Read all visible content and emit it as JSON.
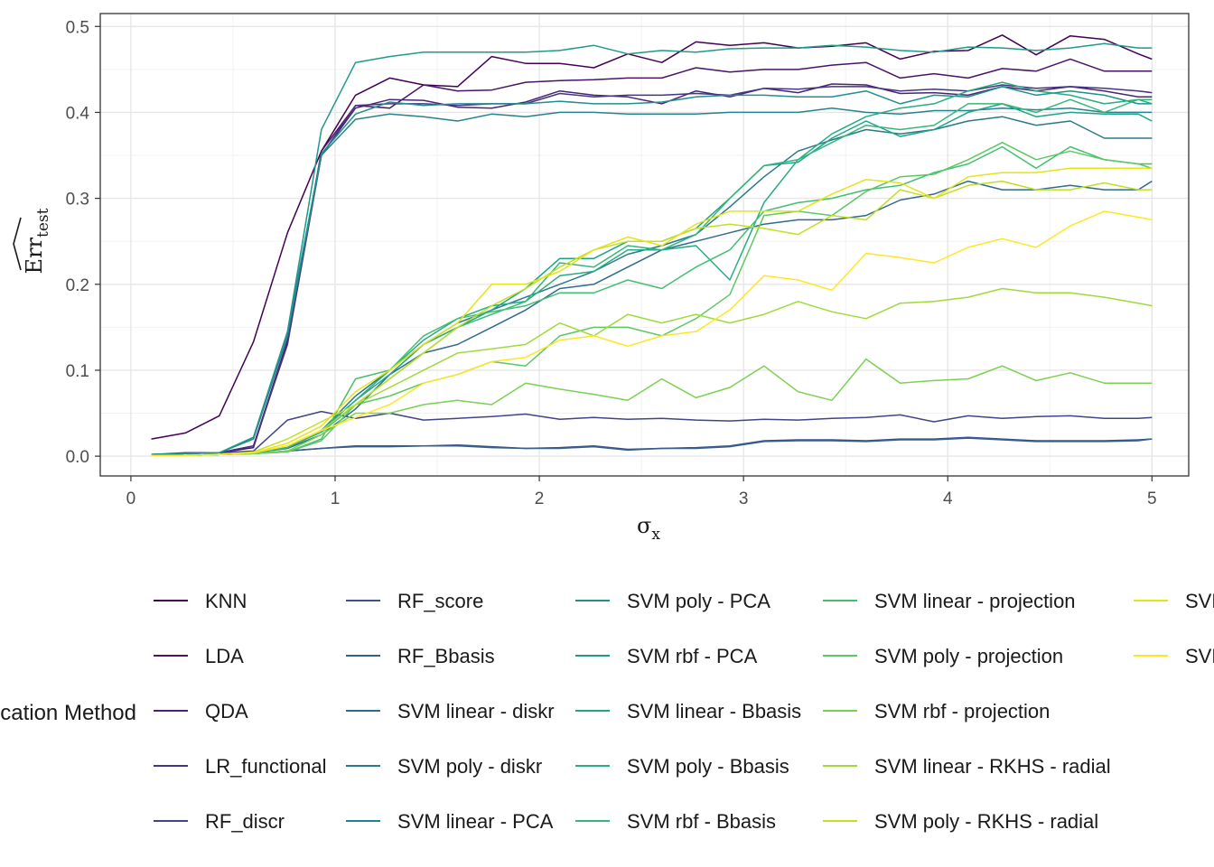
{
  "chart_data": {
    "type": "line",
    "xlabel_symbol": "σ",
    "xlabel_subscript": "x",
    "ylabel_main": "Err",
    "ylabel_subscript": "test",
    "xlim": [
      -0.15,
      5.18
    ],
    "ylim": [
      -0.023,
      0.515
    ],
    "xticks": [
      0,
      1,
      2,
      3,
      4,
      5
    ],
    "yticks": [
      0.0,
      0.1,
      0.2,
      0.3,
      0.4,
      0.5
    ],
    "xtick_labels": [
      "0",
      "1",
      "2",
      "3",
      "4",
      "5"
    ],
    "ytick_labels": [
      "0.0",
      "0.1",
      "0.2",
      "0.3",
      "0.4",
      "0.5"
    ],
    "grid": true,
    "legend_position": "bottom",
    "legend_title": "Classification Method",
    "x": [
      0.1,
      0.267,
      0.433,
      0.6,
      0.767,
      0.933,
      1.1,
      1.267,
      1.433,
      1.6,
      1.767,
      1.933,
      2.1,
      2.267,
      2.433,
      2.6,
      2.767,
      2.933,
      3.1,
      3.267,
      3.433,
      3.6,
      3.767,
      3.933,
      4.1,
      4.267,
      4.433,
      4.6,
      4.767,
      4.933,
      5.0
    ],
    "series": [
      {
        "name": "KNN",
        "color": "#440154",
        "values": [
          0.02,
          0.027,
          0.047,
          0.133,
          0.26,
          0.355,
          0.42,
          0.44,
          0.432,
          0.43,
          0.465,
          0.457,
          0.457,
          0.452,
          0.468,
          0.458,
          0.482,
          0.478,
          0.481,
          0.475,
          0.477,
          0.481,
          0.462,
          0.471,
          0.472,
          0.49,
          0.467,
          0.489,
          0.485,
          0.468,
          0.462
        ]
      },
      {
        "name": "LDA",
        "color": "#481467",
        "values": [
          0.002,
          0.003,
          0.004,
          0.01,
          0.133,
          0.355,
          0.408,
          0.405,
          0.432,
          0.425,
          0.426,
          0.435,
          0.437,
          0.438,
          0.44,
          0.44,
          0.452,
          0.447,
          0.45,
          0.45,
          0.455,
          0.458,
          0.44,
          0.445,
          0.44,
          0.451,
          0.448,
          0.462,
          0.448,
          0.448,
          0.448
        ]
      },
      {
        "name": "QDA",
        "color": "#482576",
        "values": [
          0.002,
          0.003,
          0.004,
          0.012,
          0.135,
          0.35,
          0.405,
          0.415,
          0.414,
          0.406,
          0.405,
          0.412,
          0.425,
          0.42,
          0.418,
          0.41,
          0.425,
          0.418,
          0.428,
          0.423,
          0.433,
          0.432,
          0.422,
          0.423,
          0.42,
          0.43,
          0.425,
          0.43,
          0.425,
          0.418,
          0.418
        ]
      },
      {
        "name": "LR_functional",
        "color": "#463480",
        "values": [
          0.002,
          0.003,
          0.004,
          0.012,
          0.13,
          0.35,
          0.408,
          0.41,
          0.41,
          0.408,
          0.41,
          0.41,
          0.422,
          0.418,
          0.42,
          0.42,
          0.422,
          0.42,
          0.428,
          0.427,
          0.43,
          0.43,
          0.425,
          0.427,
          0.425,
          0.432,
          0.428,
          0.43,
          0.428,
          0.425,
          0.423
        ]
      },
      {
        "name": "RF_discr",
        "color": "#414487",
        "values": [
          0.002,
          0.004,
          0.004,
          0.006,
          0.042,
          0.052,
          0.044,
          0.05,
          0.042,
          0.044,
          0.046,
          0.049,
          0.043,
          0.045,
          0.043,
          0.044,
          0.042,
          0.041,
          0.043,
          0.042,
          0.044,
          0.045,
          0.048,
          0.04,
          0.047,
          0.044,
          0.046,
          0.047,
          0.044,
          0.044,
          0.045
        ]
      },
      {
        "name": "RF_score",
        "color": "#3B528B",
        "values": [
          0.001,
          0.001,
          0.002,
          0.003,
          0.006,
          0.009,
          0.012,
          0.012,
          0.012,
          0.013,
          0.011,
          0.009,
          0.01,
          0.012,
          0.008,
          0.009,
          0.01,
          0.012,
          0.018,
          0.019,
          0.019,
          0.018,
          0.02,
          0.02,
          0.022,
          0.02,
          0.018,
          0.018,
          0.018,
          0.019,
          0.02
        ]
      },
      {
        "name": "RF_Bbasis",
        "color": "#355F8D",
        "values": [
          0.001,
          0.001,
          0.002,
          0.003,
          0.006,
          0.009,
          0.011,
          0.011,
          0.012,
          0.012,
          0.01,
          0.009,
          0.009,
          0.011,
          0.007,
          0.009,
          0.009,
          0.011,
          0.017,
          0.018,
          0.018,
          0.017,
          0.019,
          0.019,
          0.021,
          0.019,
          0.017,
          0.017,
          0.017,
          0.018,
          0.02
        ]
      },
      {
        "name": "SVM linear - diskr",
        "color": "#2F6B8E",
        "values": [
          0.001,
          0.001,
          0.002,
          0.004,
          0.009,
          0.025,
          0.055,
          0.095,
          0.12,
          0.13,
          0.15,
          0.17,
          0.195,
          0.2,
          0.22,
          0.24,
          0.25,
          0.26,
          0.27,
          0.275,
          0.275,
          0.28,
          0.298,
          0.305,
          0.32,
          0.31,
          0.31,
          0.315,
          0.31,
          0.31,
          0.32
        ]
      },
      {
        "name": "SVM poly - diskr",
        "color": "#2A788E",
        "values": [
          0.001,
          0.001,
          0.002,
          0.004,
          0.01,
          0.03,
          0.07,
          0.1,
          0.13,
          0.155,
          0.17,
          0.185,
          0.2,
          0.215,
          0.235,
          0.245,
          0.258,
          0.29,
          0.325,
          0.355,
          0.368,
          0.38,
          0.375,
          0.38,
          0.39,
          0.395,
          0.385,
          0.39,
          0.37,
          0.37,
          0.37
        ]
      },
      {
        "name": "SVM linear - PCA",
        "color": "#25838E",
        "values": [
          0.002,
          0.003,
          0.004,
          0.02,
          0.14,
          0.35,
          0.392,
          0.398,
          0.395,
          0.39,
          0.398,
          0.395,
          0.4,
          0.4,
          0.398,
          0.398,
          0.398,
          0.4,
          0.4,
          0.4,
          0.405,
          0.4,
          0.398,
          0.402,
          0.402,
          0.405,
          0.403,
          0.405,
          0.4,
          0.4,
          0.4
        ]
      },
      {
        "name": "SVM poly - PCA",
        "color": "#21908C",
        "values": [
          0.002,
          0.003,
          0.004,
          0.022,
          0.145,
          0.352,
          0.398,
          0.412,
          0.408,
          0.41,
          0.41,
          0.41,
          0.413,
          0.41,
          0.41,
          0.412,
          0.418,
          0.42,
          0.42,
          0.418,
          0.418,
          0.425,
          0.41,
          0.42,
          0.418,
          0.43,
          0.42,
          0.425,
          0.42,
          0.41,
          0.41
        ]
      },
      {
        "name": "SVM rbf - PCA",
        "color": "#1F9A8A",
        "values": [
          0.002,
          0.003,
          0.004,
          0.022,
          0.145,
          0.38,
          0.458,
          0.465,
          0.47,
          0.47,
          0.47,
          0.47,
          0.472,
          0.478,
          0.468,
          0.472,
          0.47,
          0.474,
          0.475,
          0.475,
          0.478,
          0.476,
          0.472,
          0.47,
          0.476,
          0.475,
          0.472,
          0.475,
          0.48,
          0.475,
          0.475
        ]
      },
      {
        "name": "SVM linear - Bbasis",
        "color": "#20A486",
        "values": [
          0.001,
          0.001,
          0.002,
          0.004,
          0.01,
          0.03,
          0.065,
          0.095,
          0.13,
          0.15,
          0.17,
          0.195,
          0.23,
          0.23,
          0.25,
          0.25,
          0.265,
          0.3,
          0.338,
          0.342,
          0.37,
          0.39,
          0.372,
          0.38,
          0.4,
          0.41,
          0.395,
          0.4,
          0.398,
          0.398,
          0.39
        ]
      },
      {
        "name": "SVM poly - Bbasis",
        "color": "#27AD81",
        "values": [
          0.001,
          0.001,
          0.002,
          0.004,
          0.01,
          0.03,
          0.065,
          0.1,
          0.135,
          0.16,
          0.175,
          0.18,
          0.21,
          0.215,
          0.24,
          0.24,
          0.245,
          0.205,
          0.295,
          0.345,
          0.375,
          0.395,
          0.405,
          0.41,
          0.425,
          0.435,
          0.425,
          0.42,
          0.41,
          0.415,
          0.41
        ]
      },
      {
        "name": "SVM rbf - Bbasis",
        "color": "#35B779",
        "values": [
          0.001,
          0.001,
          0.002,
          0.004,
          0.01,
          0.028,
          0.06,
          0.09,
          0.12,
          0.15,
          0.165,
          0.18,
          0.225,
          0.22,
          0.245,
          0.24,
          0.258,
          0.3,
          0.338,
          0.345,
          0.365,
          0.385,
          0.38,
          0.385,
          0.41,
          0.41,
          0.4,
          0.415,
          0.4,
          0.415,
          0.415
        ]
      },
      {
        "name": "SVM linear - projection",
        "color": "#43BF71",
        "values": [
          0.001,
          0.001,
          0.002,
          0.003,
          0.005,
          0.02,
          0.09,
          0.1,
          0.14,
          0.16,
          0.168,
          0.175,
          0.19,
          0.19,
          0.205,
          0.195,
          0.22,
          0.24,
          0.285,
          0.295,
          0.3,
          0.31,
          0.315,
          0.33,
          0.34,
          0.36,
          0.335,
          0.36,
          0.345,
          0.34,
          0.34
        ]
      },
      {
        "name": "SVM poly - projection",
        "color": "#5DC863",
        "values": [
          0.001,
          0.001,
          0.002,
          0.003,
          0.005,
          0.018,
          0.06,
          0.07,
          0.085,
          0.095,
          0.11,
          0.105,
          0.14,
          0.15,
          0.15,
          0.14,
          0.16,
          0.188,
          0.28,
          0.285,
          0.28,
          0.308,
          0.325,
          0.328,
          0.345,
          0.365,
          0.345,
          0.355,
          0.345,
          0.34,
          0.335
        ]
      },
      {
        "name": "SVM rbf - projection",
        "color": "#7AD151",
        "values": [
          0.001,
          0.001,
          0.002,
          0.003,
          0.006,
          0.025,
          0.05,
          0.05,
          0.06,
          0.065,
          0.06,
          0.085,
          0.078,
          0.072,
          0.065,
          0.09,
          0.068,
          0.08,
          0.105,
          0.075,
          0.065,
          0.113,
          0.085,
          0.088,
          0.09,
          0.105,
          0.088,
          0.097,
          0.085,
          0.085,
          0.085
        ]
      },
      {
        "name": "SVM linear - RKHS - radial",
        "color": "#9FDA3A",
        "values": [
          0.001,
          0.001,
          0.002,
          0.004,
          0.012,
          0.03,
          0.06,
          0.08,
          0.1,
          0.12,
          0.125,
          0.13,
          0.155,
          0.14,
          0.165,
          0.155,
          0.165,
          0.155,
          0.165,
          0.18,
          0.168,
          0.16,
          0.178,
          0.18,
          0.185,
          0.195,
          0.19,
          0.19,
          0.185,
          0.178,
          0.175
        ]
      },
      {
        "name": "SVM poly - RKHS - radial",
        "color": "#C2DF23",
        "values": [
          0.001,
          0.001,
          0.002,
          0.005,
          0.02,
          0.04,
          0.06,
          0.09,
          0.12,
          0.15,
          0.175,
          0.195,
          0.22,
          0.24,
          0.25,
          0.25,
          0.265,
          0.27,
          0.265,
          0.258,
          0.28,
          0.275,
          0.31,
          0.3,
          0.315,
          0.32,
          0.31,
          0.31,
          0.318,
          0.31,
          0.31
        ]
      },
      {
        "name": "SVM rbf - RKHS - radial",
        "color": "#E4E419",
        "values": [
          0.001,
          0.001,
          0.002,
          0.004,
          0.015,
          0.035,
          0.075,
          0.1,
          0.13,
          0.155,
          0.2,
          0.2,
          0.215,
          0.24,
          0.255,
          0.245,
          0.27,
          0.285,
          0.285,
          0.285,
          0.305,
          0.322,
          0.318,
          0.3,
          0.325,
          0.33,
          0.33,
          0.335,
          0.335,
          0.335,
          0.335
        ]
      },
      {
        "name": "SVM linear - RKHS - polynomial",
        "color": "#FDE725",
        "values": [
          0.001,
          0.001,
          0.002,
          0.004,
          0.012,
          0.03,
          0.045,
          0.06,
          0.085,
          0.095,
          0.11,
          0.115,
          0.135,
          0.14,
          0.128,
          0.14,
          0.145,
          0.17,
          0.21,
          0.205,
          0.193,
          0.236,
          0.231,
          0.225,
          0.243,
          0.253,
          0.243,
          0.268,
          0.285,
          0.278,
          0.275
        ]
      }
    ]
  }
}
